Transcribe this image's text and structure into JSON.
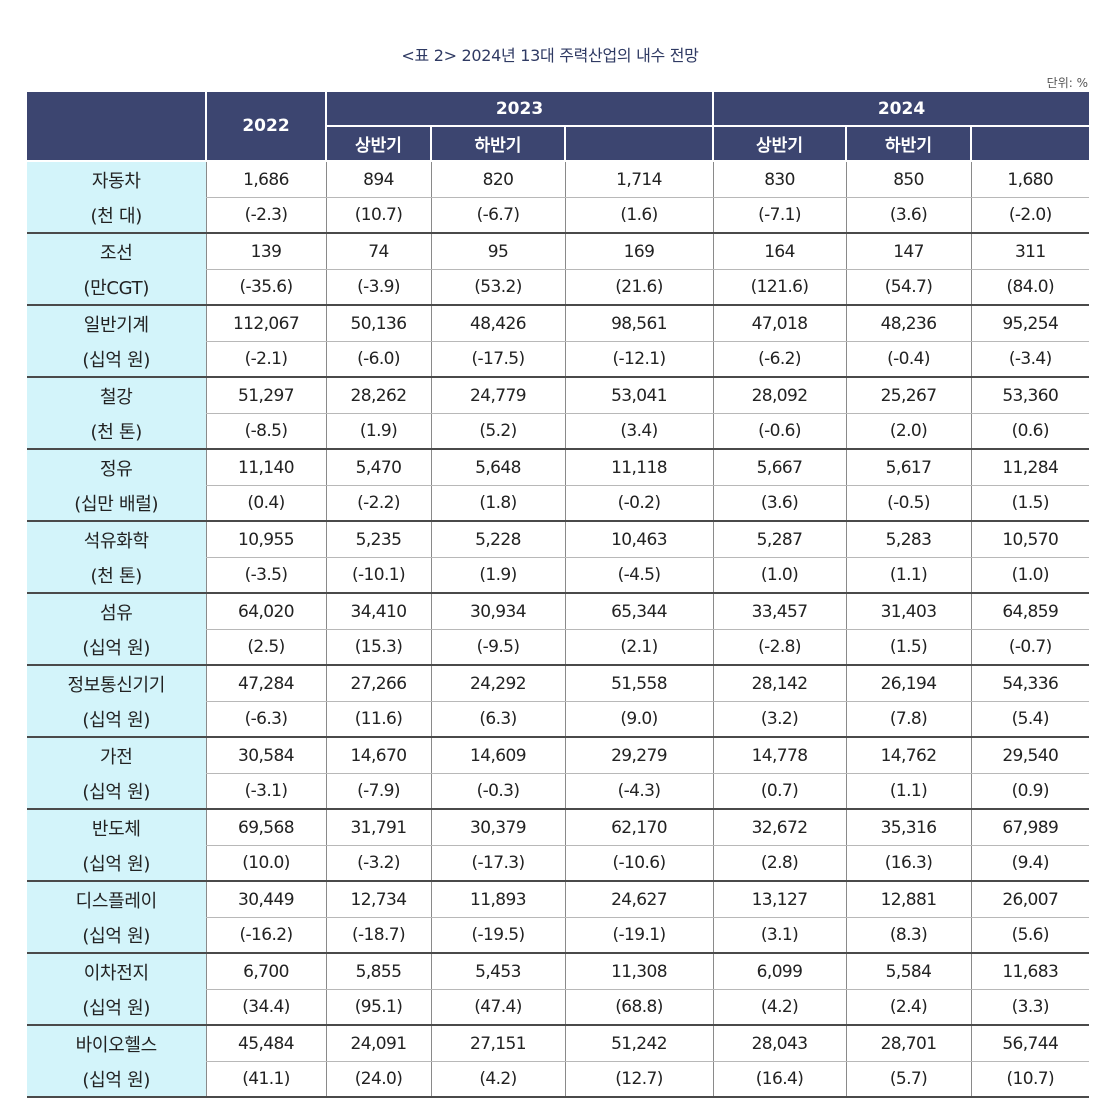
{
  "title": "<표 2> 2024년 13대 주력산업의 내수 전망",
  "unit": "단위: %",
  "header": {
    "year_2022": "2022",
    "year_2023": "2023",
    "year_2024": "2024",
    "h1_2023": "상반기",
    "h2_2023": "하반기",
    "total_2023": "",
    "h1_2024": "상반기",
    "h2_2024": "하반기",
    "total_2024": ""
  },
  "rows": [
    {
      "name": "자동차",
      "unit": "(천 대)",
      "values": [
        "1,686",
        "894",
        "820",
        "1,714",
        "830",
        "850",
        "1,680"
      ],
      "changes": [
        "(-2.3)",
        "(10.7)",
        "(-6.7)",
        "(1.6)",
        "(-7.1)",
        "(3.6)",
        "(-2.0)"
      ]
    },
    {
      "name": "조선",
      "unit": "(만CGT)",
      "values": [
        "139",
        "74",
        "95",
        "169",
        "164",
        "147",
        "311"
      ],
      "changes": [
        "(-35.6)",
        "(-3.9)",
        "(53.2)",
        "(21.6)",
        "(121.6)",
        "(54.7)",
        "(84.0)"
      ]
    },
    {
      "name": "일반기계",
      "unit": "(십억 원)",
      "values": [
        "112,067",
        "50,136",
        "48,426",
        "98,561",
        "47,018",
        "48,236",
        "95,254"
      ],
      "changes": [
        "(-2.1)",
        "(-6.0)",
        "(-17.5)",
        "(-12.1)",
        "(-6.2)",
        "(-0.4)",
        "(-3.4)"
      ]
    },
    {
      "name": "철강",
      "unit": "(천 톤)",
      "values": [
        "51,297",
        "28,262",
        "24,779",
        "53,041",
        "28,092",
        "25,267",
        "53,360"
      ],
      "changes": [
        "(-8.5)",
        "(1.9)",
        "(5.2)",
        "(3.4)",
        "(-0.6)",
        "(2.0)",
        "(0.6)"
      ]
    },
    {
      "name": "정유",
      "unit": "(십만 배럴)",
      "values": [
        "11,140",
        "5,470",
        "5,648",
        "11,118",
        "5,667",
        "5,617",
        "11,284"
      ],
      "changes": [
        "(0.4)",
        "(-2.2)",
        "(1.8)",
        "(-0.2)",
        "(3.6)",
        "(-0.5)",
        "(1.5)"
      ]
    },
    {
      "name": "석유화학",
      "unit": "(천 톤)",
      "values": [
        "10,955",
        "5,235",
        "5,228",
        "10,463",
        "5,287",
        "5,283",
        "10,570"
      ],
      "changes": [
        "(-3.5)",
        "(-10.1)",
        "(1.9)",
        "(-4.5)",
        "(1.0)",
        "(1.1)",
        "(1.0)"
      ]
    },
    {
      "name": "섬유",
      "unit": "(십억 원)",
      "values": [
        "64,020",
        "34,410",
        "30,934",
        "65,344",
        "33,457",
        "31,403",
        "64,859"
      ],
      "changes": [
        "(2.5)",
        "(15.3)",
        "(-9.5)",
        "(2.1)",
        "(-2.8)",
        "(1.5)",
        "(-0.7)"
      ]
    },
    {
      "name": "정보통신기기",
      "unit": "(십억 원)",
      "values": [
        "47,284",
        "27,266",
        "24,292",
        "51,558",
        "28,142",
        "26,194",
        "54,336"
      ],
      "changes": [
        "(-6.3)",
        "(11.6)",
        "(6.3)",
        "(9.0)",
        "(3.2)",
        "(7.8)",
        "(5.4)"
      ]
    },
    {
      "name": "가전",
      "unit": "(십억 원)",
      "values": [
        "30,584",
        "14,670",
        "14,609",
        "29,279",
        "14,778",
        "14,762",
        "29,540"
      ],
      "changes": [
        "(-3.1)",
        "(-7.9)",
        "(-0.3)",
        "(-4.3)",
        "(0.7)",
        "(1.1)",
        "(0.9)"
      ]
    },
    {
      "name": "반도체",
      "unit": "(십억 원)",
      "values": [
        "69,568",
        "31,791",
        "30,379",
        "62,170",
        "32,672",
        "35,316",
        "67,989"
      ],
      "changes": [
        "(10.0)",
        "(-3.2)",
        "(-17.3)",
        "(-10.6)",
        "(2.8)",
        "(16.3)",
        "(9.4)"
      ]
    },
    {
      "name": "디스플레이",
      "unit": "(십억 원)",
      "values": [
        "30,449",
        "12,734",
        "11,893",
        "24,627",
        "13,127",
        "12,881",
        "26,007"
      ],
      "changes": [
        "(-16.2)",
        "(-18.7)",
        "(-19.5)",
        "(-19.1)",
        "(3.1)",
        "(8.3)",
        "(5.6)"
      ]
    },
    {
      "name": "이차전지",
      "unit": "(십억 원)",
      "values": [
        "6,700",
        "5,855",
        "5,453",
        "11,308",
        "6,099",
        "5,584",
        "11,683"
      ],
      "changes": [
        "(34.4)",
        "(95.1)",
        "(47.4)",
        "(68.8)",
        "(4.2)",
        "(2.4)",
        "(3.3)"
      ]
    },
    {
      "name": "바이오헬스",
      "unit": "(십억 원)",
      "values": [
        "45,484",
        "24,091",
        "27,151",
        "51,242",
        "28,043",
        "28,701",
        "56,744"
      ],
      "changes": [
        "(41.1)",
        "(24.0)",
        "(4.2)",
        "(12.7)",
        "(16.4)",
        "(5.7)",
        "(10.7)"
      ]
    }
  ]
}
